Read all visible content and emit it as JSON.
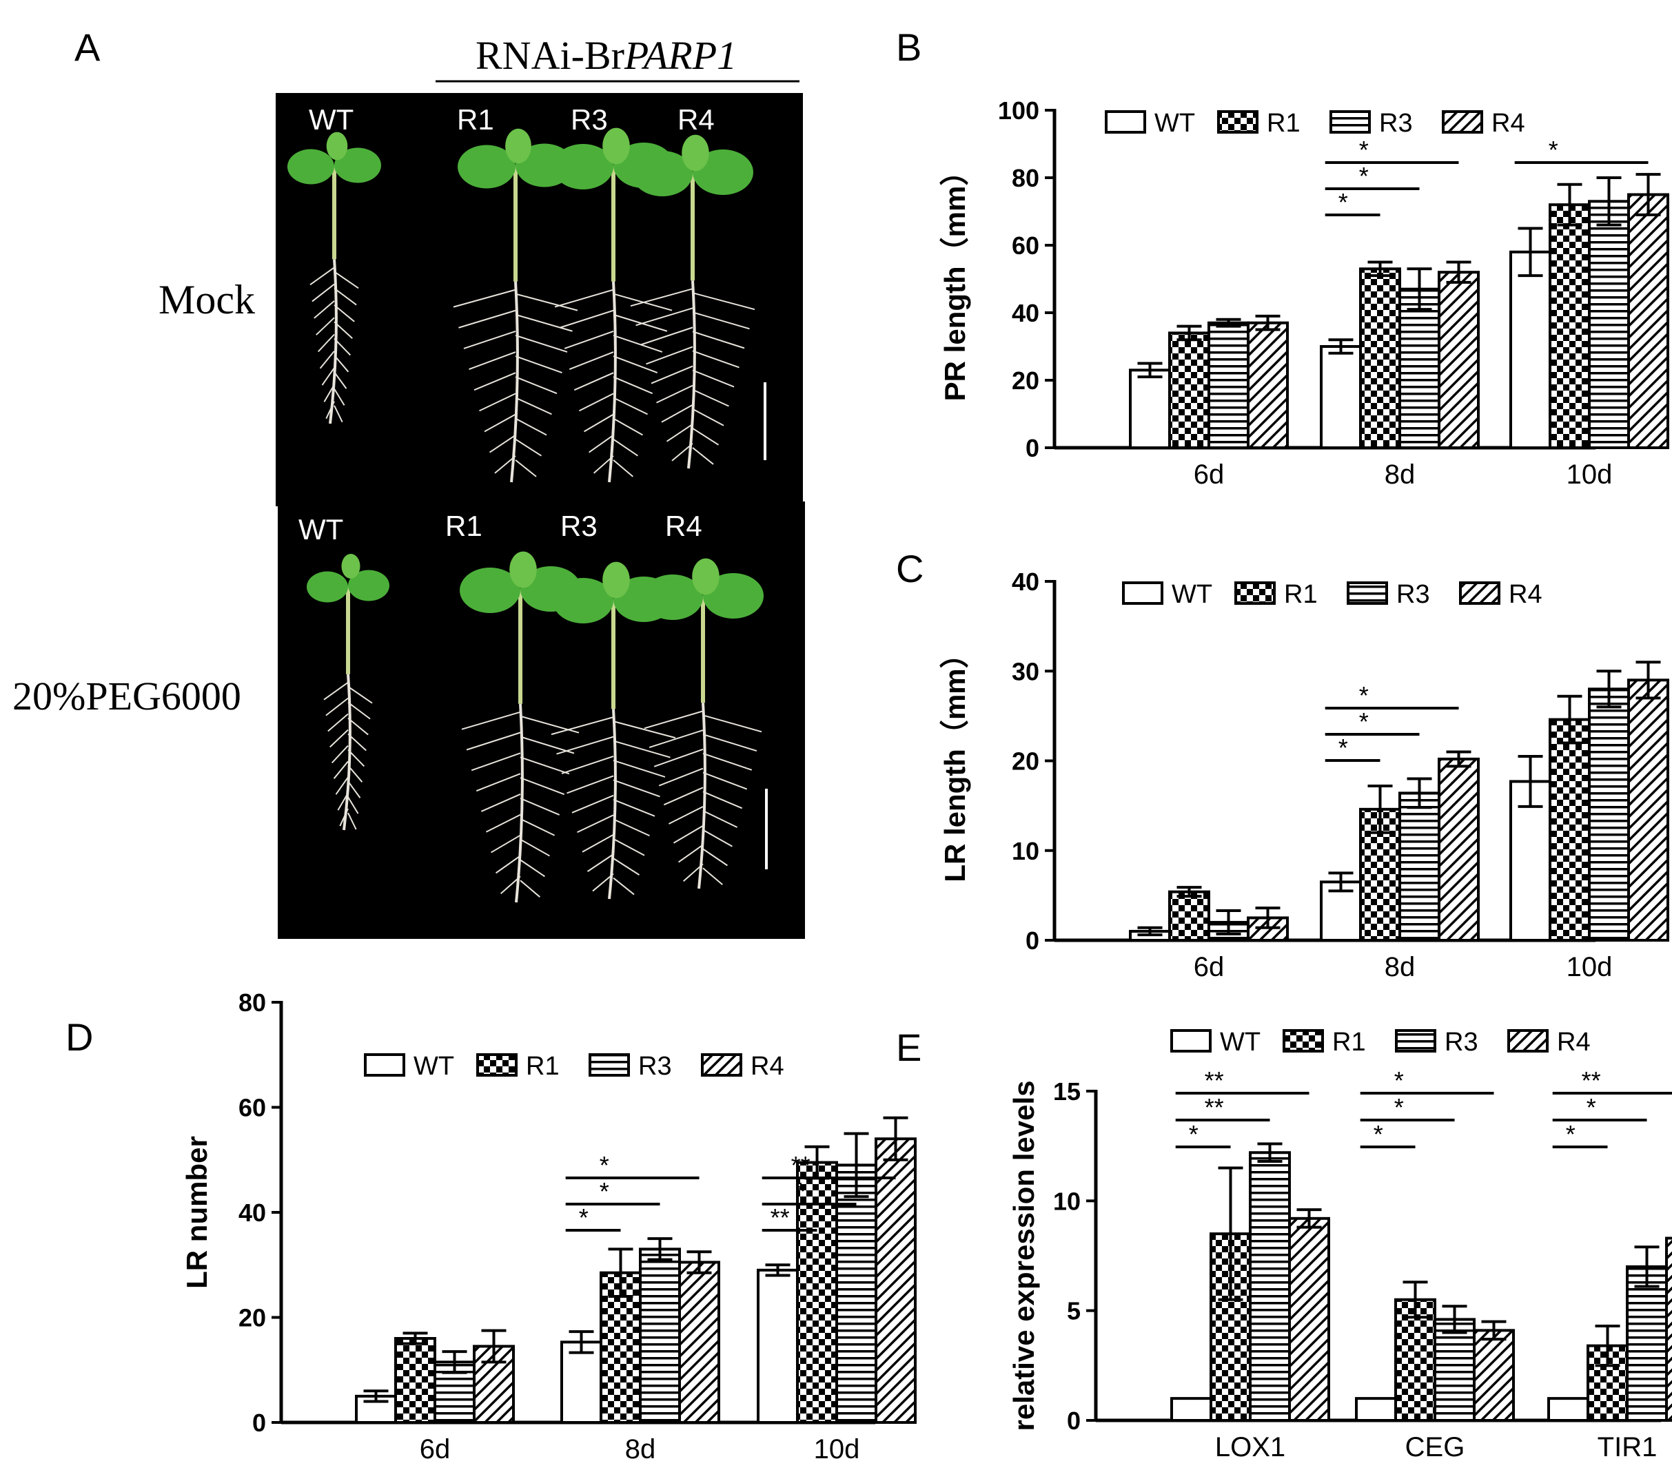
{
  "colors": {
    "ink": "#000000",
    "bar": "#ffffff",
    "photo": "#000000",
    "leaf": "#4caf3a",
    "root": "#e8e4dc",
    "scale": "#ffffff"
  },
  "panel_a": {
    "letter": "A",
    "header_prefix": "RNAi-Br",
    "header_gene": "PARP1",
    "rows": [
      {
        "label": "Mock",
        "plants": [
          "WT",
          "R1",
          "R3",
          "R4"
        ]
      },
      {
        "label": "20%PEG6000",
        "plants": [
          "WT",
          "R1",
          "R3",
          "R4"
        ]
      }
    ]
  },
  "chart_data": [
    {
      "panel": "B",
      "type": "bar",
      "categories": [
        "6d",
        "8d",
        "10d"
      ],
      "ylabel": "PR length（mm）",
      "ylim": [
        0,
        100
      ],
      "yticks": [
        0,
        20,
        40,
        60,
        80,
        100
      ],
      "legend": [
        "WT",
        "R1",
        "R3",
        "R4"
      ],
      "series": [
        {
          "name": "WT",
          "pattern": "plain",
          "values": [
            23,
            30,
            58
          ],
          "errors": [
            2,
            2,
            7
          ]
        },
        {
          "name": "R1",
          "pattern": "checker",
          "values": [
            34,
            53,
            72
          ],
          "errors": [
            2,
            2,
            6
          ]
        },
        {
          "name": "R3",
          "pattern": "horizontal",
          "values": [
            37,
            47,
            73
          ],
          "errors": [
            1,
            6,
            7
          ]
        },
        {
          "name": "R4",
          "pattern": "diagonal",
          "values": [
            37,
            52,
            75
          ],
          "errors": [
            2,
            3,
            6
          ]
        }
      ],
      "significance": [
        {
          "group": 1,
          "from": 0,
          "to": 1,
          "label": "*"
        },
        {
          "group": 1,
          "from": 0,
          "to": 2,
          "label": "*"
        },
        {
          "group": 1,
          "from": 0,
          "to": 3,
          "label": "*"
        },
        {
          "group": 2,
          "from": 0,
          "to": 3,
          "label": "*"
        }
      ]
    },
    {
      "panel": "C",
      "type": "bar",
      "categories": [
        "6d",
        "8d",
        "10d"
      ],
      "ylabel": "LR length（mm）",
      "ylim": [
        0,
        40
      ],
      "yticks": [
        0,
        10,
        20,
        30,
        40
      ],
      "legend": [
        "WT",
        "R1",
        "R3",
        "R4"
      ],
      "series": [
        {
          "name": "WT",
          "pattern": "plain",
          "values": [
            1,
            6.5,
            17.7
          ],
          "errors": [
            0.4,
            1,
            2.8
          ]
        },
        {
          "name": "R1",
          "pattern": "checker",
          "values": [
            5.4,
            14.6,
            24.6
          ],
          "errors": [
            0.5,
            2.6,
            2.6
          ]
        },
        {
          "name": "R3",
          "pattern": "horizontal",
          "values": [
            2,
            16.4,
            28
          ],
          "errors": [
            1.3,
            1.6,
            2
          ]
        },
        {
          "name": "R4",
          "pattern": "diagonal",
          "values": [
            2.5,
            20.2,
            29
          ],
          "errors": [
            1.1,
            0.8,
            2
          ]
        }
      ],
      "significance": [
        {
          "group": 1,
          "from": 0,
          "to": 1,
          "label": "*"
        },
        {
          "group": 1,
          "from": 0,
          "to": 2,
          "label": "*"
        },
        {
          "group": 1,
          "from": 0,
          "to": 3,
          "label": "*"
        }
      ]
    },
    {
      "panel": "D",
      "type": "bar",
      "categories": [
        "6d",
        "8d",
        "10d"
      ],
      "ylabel": "LR number",
      "ylim": [
        0,
        80
      ],
      "yticks": [
        0,
        20,
        40,
        60,
        80
      ],
      "legend": [
        "WT",
        "R1",
        "R3",
        "R4"
      ],
      "series": [
        {
          "name": "WT",
          "pattern": "plain",
          "values": [
            5,
            15.3,
            29
          ],
          "errors": [
            1,
            2,
            1
          ]
        },
        {
          "name": "R1",
          "pattern": "checker",
          "values": [
            16,
            28.5,
            49.5
          ],
          "errors": [
            1,
            4.5,
            3
          ]
        },
        {
          "name": "R3",
          "pattern": "horizontal",
          "values": [
            11.5,
            33,
            49
          ],
          "errors": [
            2,
            2,
            6
          ]
        },
        {
          "name": "R4",
          "pattern": "diagonal",
          "values": [
            14.5,
            30.5,
            54
          ],
          "errors": [
            3,
            2,
            4
          ]
        }
      ],
      "significance": [
        {
          "group": 1,
          "from": 0,
          "to": 1,
          "label": "*"
        },
        {
          "group": 1,
          "from": 0,
          "to": 2,
          "label": "*"
        },
        {
          "group": 1,
          "from": 0,
          "to": 3,
          "label": "*"
        },
        {
          "group": 2,
          "from": 0,
          "to": 1,
          "label": "**"
        },
        {
          "group": 2,
          "from": 0,
          "to": 2,
          "label": "*"
        },
        {
          "group": 2,
          "from": 0,
          "to": 3,
          "label": "**"
        }
      ]
    },
    {
      "panel": "E",
      "type": "bar",
      "categories": [
        "LOX1",
        "CEG",
        "TIR1"
      ],
      "ylabel": "relative expression levels",
      "ylim": [
        0,
        15
      ],
      "yticks": [
        0,
        5,
        10,
        15
      ],
      "legend": [
        "WT",
        "R1",
        "R3",
        "R4"
      ],
      "series": [
        {
          "name": "WT",
          "pattern": "plain",
          "values": [
            1,
            1,
            1
          ],
          "errors": [
            0,
            0,
            0
          ]
        },
        {
          "name": "R1",
          "pattern": "checker",
          "values": [
            8.5,
            5.5,
            3.4
          ],
          "errors": [
            3,
            0.8,
            0.9
          ]
        },
        {
          "name": "R3",
          "pattern": "horizontal",
          "values": [
            12.2,
            4.6,
            7
          ],
          "errors": [
            0.4,
            0.6,
            0.9
          ]
        },
        {
          "name": "R4",
          "pattern": "diagonal",
          "values": [
            9.2,
            4.1,
            8.3
          ],
          "errors": [
            0.4,
            0.4,
            1.1
          ]
        }
      ],
      "significance": [
        {
          "group": 0,
          "from": 0,
          "to": 1,
          "label": "*"
        },
        {
          "group": 0,
          "from": 0,
          "to": 2,
          "label": "**"
        },
        {
          "group": 0,
          "from": 0,
          "to": 3,
          "label": "**"
        },
        {
          "group": 1,
          "from": 0,
          "to": 1,
          "label": "*"
        },
        {
          "group": 1,
          "from": 0,
          "to": 2,
          "label": "*"
        },
        {
          "group": 1,
          "from": 0,
          "to": 3,
          "label": "*"
        },
        {
          "group": 2,
          "from": 0,
          "to": 1,
          "label": "*"
        },
        {
          "group": 2,
          "from": 0,
          "to": 2,
          "label": "*"
        },
        {
          "group": 2,
          "from": 0,
          "to": 3,
          "label": "**"
        }
      ]
    }
  ]
}
